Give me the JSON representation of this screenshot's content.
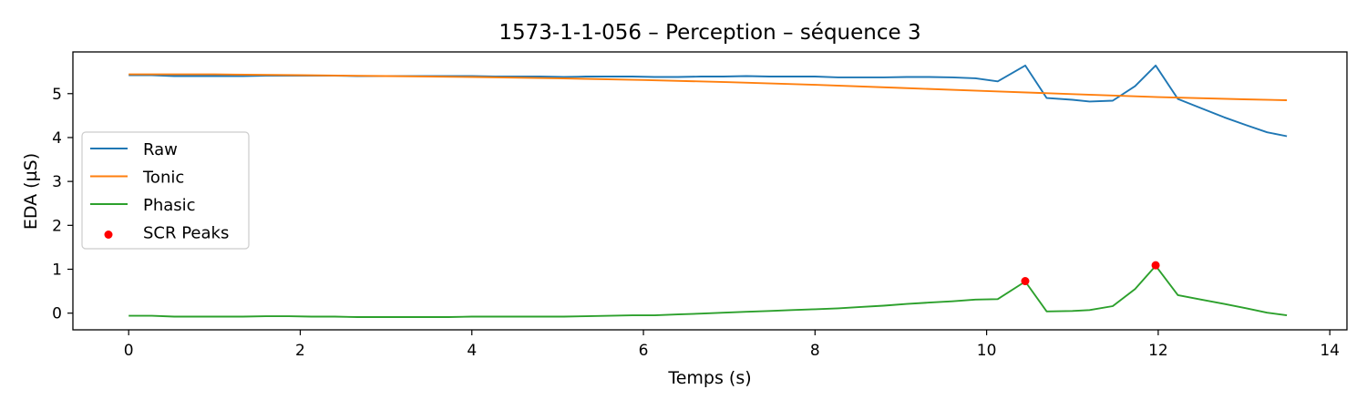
{
  "chart_data": {
    "type": "line",
    "title": "1573-1-1-056 – Perception – séquence 3",
    "xlabel": "Temps (s)",
    "ylabel": "EDA (µS)",
    "xlim": [
      -0.65,
      14.2
    ],
    "ylim": [
      -0.38,
      5.95
    ],
    "xticks": [
      0,
      2,
      4,
      6,
      8,
      10,
      12,
      14
    ],
    "yticks": [
      0,
      1,
      2,
      3,
      4,
      5
    ],
    "grid": false,
    "legend_position": "center-left",
    "series": [
      {
        "name": "Raw",
        "color": "#1f77b4",
        "x": [
          0.0,
          0.27,
          0.53,
          0.8,
          1.07,
          1.33,
          1.6,
          1.87,
          2.13,
          2.4,
          2.67,
          2.93,
          3.2,
          3.47,
          3.73,
          4.0,
          4.27,
          4.53,
          4.8,
          5.07,
          5.33,
          5.6,
          5.87,
          6.13,
          6.4,
          6.67,
          6.93,
          7.2,
          7.47,
          7.73,
          8.0,
          8.27,
          8.53,
          8.8,
          9.07,
          9.33,
          9.6,
          9.87,
          10.13,
          10.45,
          10.7,
          11.0,
          11.2,
          11.47,
          11.73,
          11.97,
          12.23,
          12.5,
          12.77,
          13.03,
          13.27,
          13.5
        ],
        "y": [
          5.42,
          5.42,
          5.4,
          5.4,
          5.4,
          5.4,
          5.41,
          5.41,
          5.41,
          5.41,
          5.4,
          5.4,
          5.4,
          5.4,
          5.4,
          5.4,
          5.39,
          5.39,
          5.39,
          5.38,
          5.39,
          5.39,
          5.39,
          5.38,
          5.38,
          5.39,
          5.39,
          5.4,
          5.39,
          5.39,
          5.39,
          5.37,
          5.37,
          5.37,
          5.38,
          5.38,
          5.37,
          5.35,
          5.28,
          5.64,
          4.9,
          4.86,
          4.82,
          4.84,
          5.17,
          5.64,
          4.88,
          4.67,
          4.46,
          4.28,
          4.12,
          4.03
        ]
      },
      {
        "name": "Tonic",
        "color": "#ff7f0e",
        "x": [
          0.0,
          1.0,
          2.0,
          3.0,
          4.0,
          5.0,
          6.0,
          7.0,
          8.0,
          9.0,
          10.0,
          11.0,
          12.0,
          13.0,
          13.5
        ],
        "y": [
          5.44,
          5.44,
          5.42,
          5.4,
          5.38,
          5.35,
          5.31,
          5.26,
          5.2,
          5.13,
          5.06,
          4.99,
          4.92,
          4.87,
          4.85
        ]
      },
      {
        "name": "Phasic",
        "color": "#2ca02c",
        "x": [
          0.0,
          0.27,
          0.53,
          0.8,
          1.07,
          1.33,
          1.6,
          1.87,
          2.13,
          2.4,
          2.67,
          2.93,
          3.2,
          3.47,
          3.73,
          4.0,
          4.27,
          4.53,
          4.8,
          5.07,
          5.33,
          5.6,
          5.87,
          6.13,
          6.4,
          6.67,
          6.93,
          7.2,
          7.47,
          7.73,
          8.0,
          8.27,
          8.53,
          8.8,
          9.07,
          9.33,
          9.6,
          9.87,
          10.13,
          10.45,
          10.7,
          11.0,
          11.2,
          11.47,
          11.73,
          11.97,
          12.23,
          12.5,
          12.77,
          13.03,
          13.27,
          13.5
        ],
        "y": [
          -0.06,
          -0.06,
          -0.08,
          -0.08,
          -0.08,
          -0.08,
          -0.07,
          -0.07,
          -0.08,
          -0.08,
          -0.09,
          -0.09,
          -0.09,
          -0.09,
          -0.09,
          -0.08,
          -0.08,
          -0.08,
          -0.08,
          -0.08,
          -0.07,
          -0.06,
          -0.05,
          -0.05,
          -0.03,
          -0.01,
          0.01,
          0.03,
          0.05,
          0.07,
          0.09,
          0.11,
          0.14,
          0.17,
          0.21,
          0.24,
          0.27,
          0.31,
          0.32,
          0.72,
          0.04,
          0.05,
          0.07,
          0.16,
          0.55,
          1.08,
          0.41,
          0.31,
          0.21,
          0.11,
          0.01,
          -0.05
        ]
      }
    ],
    "scatter": {
      "name": "SCR Peaks",
      "color": "#ff0000",
      "x": [
        10.45,
        11.97
      ],
      "y": [
        0.73,
        1.09
      ]
    }
  }
}
